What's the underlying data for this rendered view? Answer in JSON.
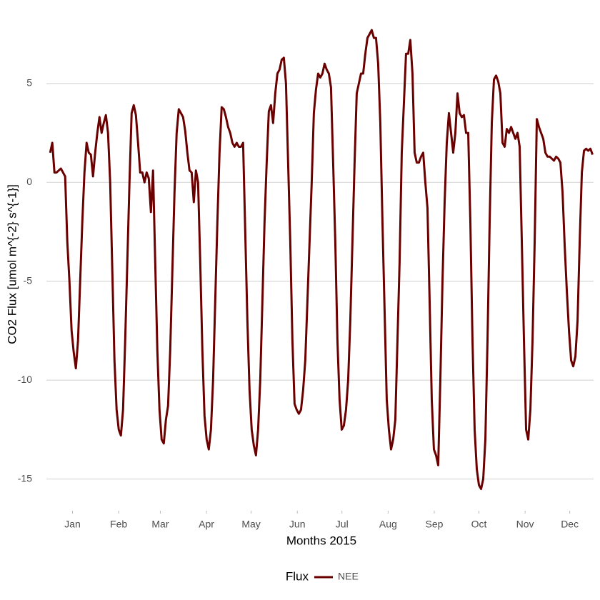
{
  "chart_data": {
    "type": "line",
    "x_label": "Months 2015",
    "y_label": "CO2 Flux [umol m^{-2} s^{-1}]",
    "legend_title": "Flux",
    "legend_position": "bottom",
    "grid": true,
    "xlim": [
      -2.5,
      365
    ],
    "ylim": [
      -16.6,
      8.1
    ],
    "xticks": [
      {
        "value": 15,
        "label": "Jan"
      },
      {
        "value": 46,
        "label": "Feb"
      },
      {
        "value": 74,
        "label": "Mar"
      },
      {
        "value": 105,
        "label": "Apr"
      },
      {
        "value": 135,
        "label": "May"
      },
      {
        "value": 166,
        "label": "Jun"
      },
      {
        "value": 196,
        "label": "Jul"
      },
      {
        "value": 227,
        "label": "Aug"
      },
      {
        "value": 258,
        "label": "Sep"
      },
      {
        "value": 288,
        "label": "Oct"
      },
      {
        "value": 319,
        "label": "Nov"
      },
      {
        "value": 349,
        "label": "Dec"
      }
    ],
    "yticks": [
      -15,
      -10,
      -5,
      0,
      5
    ],
    "x": [
      0,
      1.44,
      2.88,
      4.32,
      5.76,
      7.2,
      8.64,
      10.08,
      11.52,
      12.96,
      14.4,
      15.84,
      17.28,
      18.72,
      20.16,
      21.6,
      23.04,
      24.48,
      25.92,
      27.36,
      28.8,
      30.24,
      31.68,
      33.12,
      34.56,
      36,
      37.44,
      38.88,
      40.32,
      41.76,
      43.2,
      44.64,
      46.08,
      47.52,
      48.96,
      50.4,
      51.84,
      53.28,
      54.72,
      56.16,
      57.6,
      59.04,
      60.48,
      61.92,
      63.36,
      64.8,
      66.24,
      67.68,
      69.12,
      70.56,
      72,
      73.44,
      74.88,
      76.32,
      77.76,
      79.2,
      80.64,
      82.08,
      83.52,
      84.96,
      86.4,
      87.84,
      89.28,
      90.72,
      92.16,
      93.6,
      95.04,
      96.48,
      97.92,
      99.36,
      100.8,
      102.24,
      103.68,
      105.12,
      106.56,
      108,
      109.44,
      110.88,
      112.32,
      113.76,
      115.2,
      116.64,
      118.08,
      119.52,
      120.96,
      122.4,
      123.84,
      125.28,
      126.72,
      128.16,
      129.6,
      131.04,
      132.48,
      133.92,
      135.36,
      136.8,
      138.24,
      139.68,
      141.12,
      142.56,
      144,
      145.44,
      146.88,
      148.32,
      149.76,
      151.2,
      152.64,
      154.08,
      155.52,
      156.96,
      158.4,
      159.84,
      161.28,
      162.72,
      164.16,
      165.6,
      167.04,
      168.48,
      169.92,
      171.36,
      172.8,
      174.24,
      175.68,
      177.12,
      178.56,
      180,
      181.44,
      182.88,
      184.32,
      185.76,
      187.2,
      188.64,
      190.08,
      191.52,
      192.96,
      194.4,
      195.84,
      197.28,
      198.72,
      200.16,
      201.6,
      203.04,
      204.48,
      205.92,
      207.36,
      208.8,
      210.24,
      211.68,
      213.12,
      214.56,
      216,
      217.44,
      218.88,
      220.32,
      221.76,
      223.2,
      224.64,
      226.08,
      227.52,
      228.96,
      230.4,
      231.84,
      233.28,
      234.72,
      236.16,
      237.6,
      239.04,
      240.48,
      241.92,
      243.36,
      244.8,
      246.24,
      247.68,
      249.12,
      250.56,
      252,
      253.44,
      254.88,
      256.32,
      257.76,
      259.2,
      260.64,
      262.08,
      263.52,
      264.96,
      266.4,
      267.84,
      269.28,
      270.72,
      272.16,
      273.6,
      275.04,
      276.48,
      277.92,
      279.36,
      280.8,
      282.24,
      283.68,
      285.12,
      286.56,
      288,
      289.44,
      290.88,
      292.32,
      293.76,
      295.2,
      296.64,
      298.08,
      299.52,
      300.96,
      302.4,
      303.84,
      305.28,
      306.72,
      308.16,
      309.6,
      311.04,
      312.48,
      313.92,
      315.36,
      316.8,
      318.24,
      319.68,
      321.12,
      322.56,
      324,
      325.44,
      326.88,
      328.32,
      329.76,
      331.2,
      332.64,
      334.08,
      335.52,
      336.96,
      338.4,
      339.84,
      341.28,
      342.72,
      344.16,
      345.6,
      347.04,
      348.48,
      349.92,
      351.36,
      352.8,
      354.24,
      355.68,
      357.12,
      358.56,
      360,
      361.44,
      362.88,
      364.32
    ],
    "series": [
      {
        "name": "NEE",
        "color": "#6b0000",
        "values": [
          1.5,
          2.0,
          0.5,
          0.5,
          0.6,
          0.7,
          0.5,
          0.3,
          -3,
          -5,
          -7.5,
          -8.6,
          -9.4,
          -8,
          -5,
          -2,
          0.5,
          2,
          1.5,
          1.4,
          0.3,
          1.5,
          2.5,
          3.3,
          2.5,
          3,
          3.4,
          2.5,
          0,
          -4.5,
          -9,
          -11.5,
          -12.5,
          -12.8,
          -11.5,
          -8,
          -4,
          0,
          3.5,
          3.9,
          3.4,
          2,
          0.5,
          0.5,
          0,
          0.5,
          0.2,
          -1.5,
          0.6,
          -4,
          -8.5,
          -11.5,
          -13,
          -13.2,
          -12,
          -11.3,
          -8.5,
          -4.5,
          -0.5,
          2.5,
          3.7,
          3.5,
          3.3,
          2.6,
          1.5,
          0.6,
          0.5,
          -1,
          0.6,
          0,
          -4,
          -8.5,
          -11.8,
          -13,
          -13.5,
          -12.5,
          -10,
          -6,
          -2,
          1.5,
          3.8,
          3.7,
          3.3,
          2.8,
          2.5,
          2,
          1.8,
          2,
          1.8,
          1.8,
          2,
          -2.5,
          -7,
          -10.5,
          -12.5,
          -13.3,
          -13.8,
          -12.5,
          -10,
          -6,
          -2,
          1,
          3.6,
          3.9,
          3,
          4.5,
          5.5,
          5.7,
          6.2,
          6.3,
          5,
          1,
          -3,
          -8,
          -11.2,
          -11.5,
          -11.7,
          -11.5,
          -10.5,
          -9,
          -6,
          -3,
          0,
          3.5,
          4.7,
          5.5,
          5.3,
          5.5,
          6,
          5.7,
          5.5,
          4.8,
          1,
          -3,
          -8,
          -11,
          -12.5,
          -12.3,
          -11.5,
          -10,
          -7,
          -3,
          1,
          4.5,
          5,
          5.5,
          5.5,
          6.5,
          7.3,
          7.5,
          7.7,
          7.3,
          7.3,
          6,
          3,
          -2,
          -6.5,
          -11,
          -12.5,
          -13.5,
          -13,
          -12,
          -8,
          -4,
          1.5,
          4,
          6.5,
          6.5,
          7.2,
          5.5,
          1.5,
          1.0,
          1.0,
          1.3,
          1.5,
          0,
          -1.3,
          -6,
          -11,
          -13.5,
          -13.8,
          -14.3,
          -10,
          -5,
          -1,
          2,
          3.5,
          2.5,
          1.5,
          2.5,
          4.5,
          3.5,
          3.3,
          3.4,
          2.5,
          2.5,
          -2,
          -8,
          -12.5,
          -14.5,
          -15.3,
          -15.5,
          -15,
          -13,
          -8,
          -2,
          3,
          5.2,
          5.4,
          5.1,
          4.5,
          2,
          1.8,
          2.7,
          2.5,
          2.8,
          2.5,
          2.2,
          2.5,
          1.8,
          -3,
          -8,
          -12.5,
          -13,
          -11.5,
          -8,
          -3,
          3.2,
          2.8,
          2.5,
          2.2,
          1.5,
          1.3,
          1.3,
          1.2,
          1.1,
          1.3,
          1.2,
          1.0,
          -0.5,
          -3.2,
          -5.5,
          -7.5,
          -9,
          -9.3,
          -8.8,
          -7,
          -3,
          0.5,
          1.6,
          1.7,
          1.6,
          1.7,
          1.4
        ]
      }
    ]
  }
}
